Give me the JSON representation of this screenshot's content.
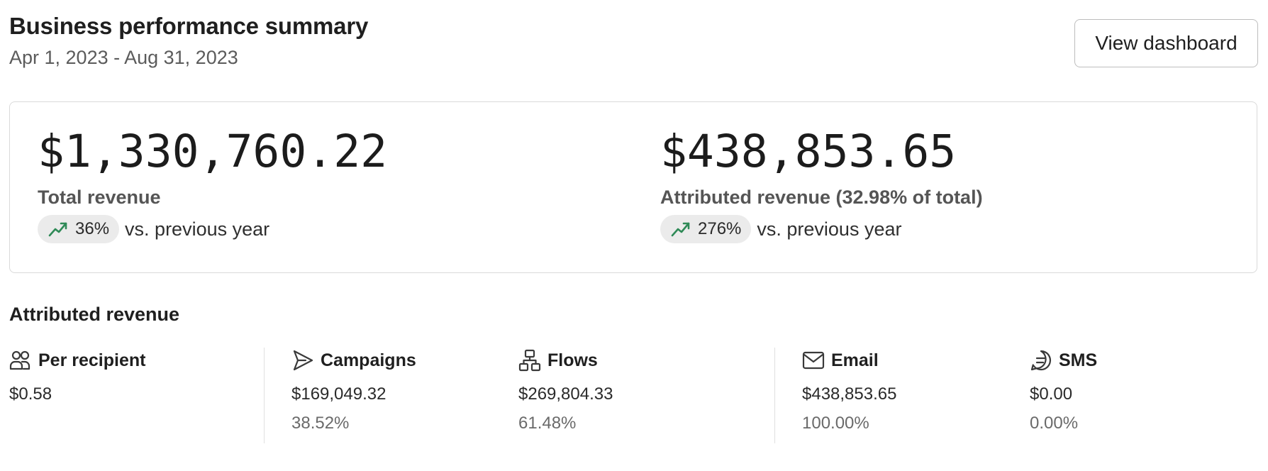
{
  "header": {
    "title": "Business performance summary",
    "date_range": "Apr 1, 2023 - Aug 31, 2023",
    "view_dashboard_label": "View dashboard"
  },
  "summary": {
    "total": {
      "value": "$1,330,760.22",
      "label": "Total revenue",
      "trend_pct": "36%",
      "trend_text": "vs. previous year",
      "trend_icon": "trending-up-icon"
    },
    "attributed": {
      "value": "$438,853.65",
      "label": "Attributed revenue (32.98% of total)",
      "trend_pct": "276%",
      "trend_text": "vs. previous year",
      "trend_icon": "trending-up-icon"
    },
    "trend_color": "#2f8a57"
  },
  "attributed_section": {
    "title": "Attributed revenue",
    "columns": [
      {
        "icon": "users-icon",
        "name": "Per recipient",
        "value": "$0.58",
        "pct": ""
      },
      {
        "icon": "send-icon",
        "name": "Campaigns",
        "value": "$169,049.32",
        "pct": "38.52%"
      },
      {
        "icon": "flow-icon",
        "name": "Flows",
        "value": "$269,804.33",
        "pct": "61.48%"
      },
      {
        "icon": "mail-icon",
        "name": "Email",
        "value": "$438,853.65",
        "pct": "100.00%"
      },
      {
        "icon": "sms-icon",
        "name": "SMS",
        "value": "$0.00",
        "pct": "0.00%"
      }
    ]
  }
}
